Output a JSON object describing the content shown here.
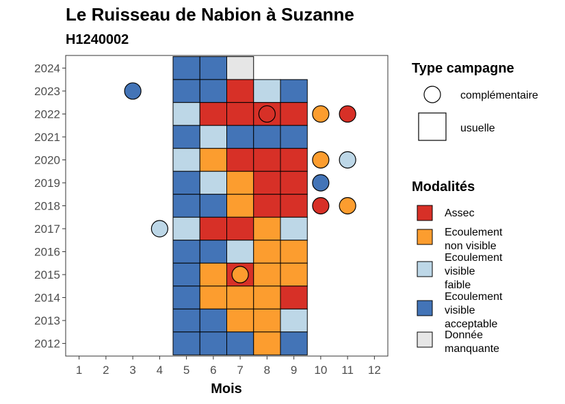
{
  "chart_data": {
    "type": "heatmap",
    "title": "Le Ruisseau de Nabion à Suzanne",
    "subtitle": "H1240002",
    "xlabel": "Mois",
    "ylabel": "",
    "x_ticks": [
      1,
      2,
      3,
      4,
      5,
      6,
      7,
      8,
      9,
      10,
      11,
      12
    ],
    "y_ticks": [
      2012,
      2013,
      2014,
      2015,
      2016,
      2017,
      2018,
      2019,
      2020,
      2021,
      2022,
      2023,
      2024
    ],
    "xlim": [
      0.5,
      12.5
    ],
    "ylim": [
      2011.45,
      2024.55
    ],
    "grid": false,
    "legend_position": "right",
    "legend_shape": {
      "title": "Type campagne",
      "entries": [
        {
          "key": "complementaire",
          "label": "complémentaire",
          "shape": "circle"
        },
        {
          "key": "usuelle",
          "label": "usuelle",
          "shape": "square"
        }
      ]
    },
    "legend_modalites": {
      "title": "Modalités",
      "entries": [
        {
          "key": "assec",
          "label": [
            "Assec"
          ],
          "color": "#d73027"
        },
        {
          "key": "nonvisible",
          "label": [
            "Ecoulement",
            "non visible"
          ],
          "color": "#fc9d2f"
        },
        {
          "key": "faible",
          "label": [
            "Ecoulement",
            "visible",
            "faible"
          ],
          "color": "#bdd7e7"
        },
        {
          "key": "acceptable",
          "label": [
            "Ecoulement",
            "visible",
            "acceptable"
          ],
          "color": "#4374b7"
        },
        {
          "key": "manquante",
          "label": [
            "Donnée",
            "manquante"
          ],
          "color": "#e6e6e6"
        }
      ]
    },
    "usuelle": [
      {
        "year": 2024,
        "month": 5,
        "modalite": "acceptable"
      },
      {
        "year": 2024,
        "month": 6,
        "modalite": "acceptable"
      },
      {
        "year": 2024,
        "month": 7,
        "modalite": "manquante"
      },
      {
        "year": 2023,
        "month": 5,
        "modalite": "acceptable"
      },
      {
        "year": 2023,
        "month": 6,
        "modalite": "acceptable"
      },
      {
        "year": 2023,
        "month": 7,
        "modalite": "assec"
      },
      {
        "year": 2023,
        "month": 8,
        "modalite": "faible"
      },
      {
        "year": 2023,
        "month": 9,
        "modalite": "acceptable"
      },
      {
        "year": 2022,
        "month": 5,
        "modalite": "faible"
      },
      {
        "year": 2022,
        "month": 6,
        "modalite": "assec"
      },
      {
        "year": 2022,
        "month": 7,
        "modalite": "assec"
      },
      {
        "year": 2022,
        "month": 8,
        "modalite": "assec"
      },
      {
        "year": 2022,
        "month": 9,
        "modalite": "assec"
      },
      {
        "year": 2021,
        "month": 5,
        "modalite": "acceptable"
      },
      {
        "year": 2021,
        "month": 6,
        "modalite": "faible"
      },
      {
        "year": 2021,
        "month": 7,
        "modalite": "acceptable"
      },
      {
        "year": 2021,
        "month": 8,
        "modalite": "acceptable"
      },
      {
        "year": 2021,
        "month": 9,
        "modalite": "acceptable"
      },
      {
        "year": 2020,
        "month": 5,
        "modalite": "faible"
      },
      {
        "year": 2020,
        "month": 6,
        "modalite": "nonvisible"
      },
      {
        "year": 2020,
        "month": 7,
        "modalite": "assec"
      },
      {
        "year": 2020,
        "month": 8,
        "modalite": "assec"
      },
      {
        "year": 2020,
        "month": 9,
        "modalite": "assec"
      },
      {
        "year": 2019,
        "month": 5,
        "modalite": "acceptable"
      },
      {
        "year": 2019,
        "month": 6,
        "modalite": "faible"
      },
      {
        "year": 2019,
        "month": 7,
        "modalite": "nonvisible"
      },
      {
        "year": 2019,
        "month": 8,
        "modalite": "assec"
      },
      {
        "year": 2019,
        "month": 9,
        "modalite": "assec"
      },
      {
        "year": 2018,
        "month": 5,
        "modalite": "acceptable"
      },
      {
        "year": 2018,
        "month": 6,
        "modalite": "acceptable"
      },
      {
        "year": 2018,
        "month": 7,
        "modalite": "nonvisible"
      },
      {
        "year": 2018,
        "month": 8,
        "modalite": "assec"
      },
      {
        "year": 2018,
        "month": 9,
        "modalite": "assec"
      },
      {
        "year": 2017,
        "month": 5,
        "modalite": "faible"
      },
      {
        "year": 2017,
        "month": 6,
        "modalite": "assec"
      },
      {
        "year": 2017,
        "month": 7,
        "modalite": "assec"
      },
      {
        "year": 2017,
        "month": 8,
        "modalite": "nonvisible"
      },
      {
        "year": 2017,
        "month": 9,
        "modalite": "faible"
      },
      {
        "year": 2016,
        "month": 5,
        "modalite": "acceptable"
      },
      {
        "year": 2016,
        "month": 6,
        "modalite": "acceptable"
      },
      {
        "year": 2016,
        "month": 7,
        "modalite": "faible"
      },
      {
        "year": 2016,
        "month": 8,
        "modalite": "nonvisible"
      },
      {
        "year": 2016,
        "month": 9,
        "modalite": "nonvisible"
      },
      {
        "year": 2015,
        "month": 5,
        "modalite": "acceptable"
      },
      {
        "year": 2015,
        "month": 6,
        "modalite": "nonvisible"
      },
      {
        "year": 2015,
        "month": 7,
        "modalite": "assec"
      },
      {
        "year": 2015,
        "month": 8,
        "modalite": "nonvisible"
      },
      {
        "year": 2015,
        "month": 9,
        "modalite": "nonvisible"
      },
      {
        "year": 2014,
        "month": 5,
        "modalite": "acceptable"
      },
      {
        "year": 2014,
        "month": 6,
        "modalite": "nonvisible"
      },
      {
        "year": 2014,
        "month": 7,
        "modalite": "nonvisible"
      },
      {
        "year": 2014,
        "month": 8,
        "modalite": "nonvisible"
      },
      {
        "year": 2014,
        "month": 9,
        "modalite": "assec"
      },
      {
        "year": 2013,
        "month": 5,
        "modalite": "acceptable"
      },
      {
        "year": 2013,
        "month": 6,
        "modalite": "acceptable"
      },
      {
        "year": 2013,
        "month": 7,
        "modalite": "nonvisible"
      },
      {
        "year": 2013,
        "month": 8,
        "modalite": "nonvisible"
      },
      {
        "year": 2013,
        "month": 9,
        "modalite": "faible"
      },
      {
        "year": 2012,
        "month": 5,
        "modalite": "acceptable"
      },
      {
        "year": 2012,
        "month": 6,
        "modalite": "acceptable"
      },
      {
        "year": 2012,
        "month": 7,
        "modalite": "acceptable"
      },
      {
        "year": 2012,
        "month": 8,
        "modalite": "nonvisible"
      },
      {
        "year": 2012,
        "month": 9,
        "modalite": "acceptable"
      }
    ],
    "complementaire": [
      {
        "year": 2023,
        "month": 3,
        "modalite": "acceptable"
      },
      {
        "year": 2022,
        "month": 8,
        "modalite": "assec"
      },
      {
        "year": 2022,
        "month": 10,
        "modalite": "nonvisible"
      },
      {
        "year": 2022,
        "month": 11,
        "modalite": "assec"
      },
      {
        "year": 2020,
        "month": 10,
        "modalite": "nonvisible"
      },
      {
        "year": 2020,
        "month": 11,
        "modalite": "faible"
      },
      {
        "year": 2019,
        "month": 10,
        "modalite": "acceptable"
      },
      {
        "year": 2018,
        "month": 10,
        "modalite": "assec"
      },
      {
        "year": 2018,
        "month": 11,
        "modalite": "nonvisible"
      },
      {
        "year": 2017,
        "month": 4,
        "modalite": "faible"
      },
      {
        "year": 2015,
        "month": 7,
        "modalite": "nonvisible"
      }
    ]
  }
}
